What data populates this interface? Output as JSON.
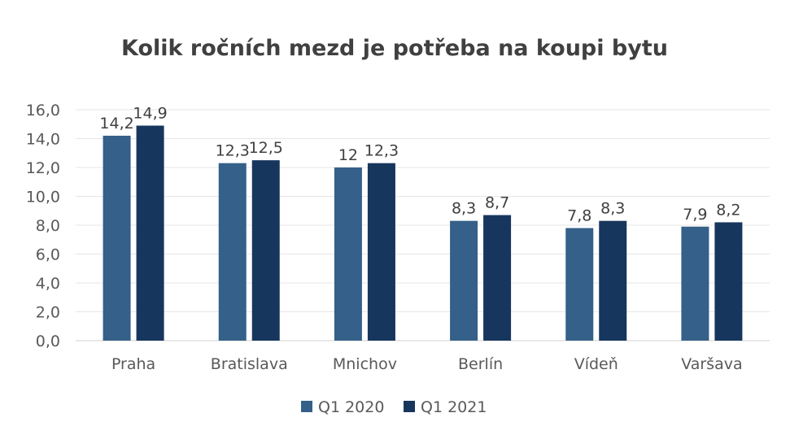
{
  "chart_data": {
    "type": "bar",
    "title": "Kolik ročních mezd je potřeba na koupi bytu",
    "xlabel": "",
    "ylabel": "",
    "categories": [
      "Praha",
      "Bratislava",
      "Mnichov",
      "Berlín",
      "Vídeň",
      "Varšava"
    ],
    "series": [
      {
        "name": "Q1 2020",
        "color": "#346089",
        "values": [
          14.2,
          12.3,
          12,
          8.3,
          7.8,
          7.9
        ],
        "labels": [
          "14,2",
          "12,3",
          "12",
          "8,3",
          "7,8",
          "7,9"
        ]
      },
      {
        "name": "Q1 2021",
        "color": "#17365d",
        "values": [
          14.9,
          12.5,
          12.3,
          8.7,
          8.3,
          8.2
        ],
        "labels": [
          "14,9",
          "12,5",
          "12,3",
          "8,7",
          "8,3",
          "8,2"
        ]
      }
    ],
    "ylim": [
      0,
      16
    ],
    "yticks": [
      0,
      2,
      4,
      6,
      8,
      10,
      12,
      14,
      16
    ],
    "ytick_labels": [
      "0,0",
      "2,0",
      "4,0",
      "6,0",
      "8,0",
      "10,0",
      "12,0",
      "14,0",
      "16,0"
    ],
    "grid": true,
    "legend": "bottom"
  }
}
